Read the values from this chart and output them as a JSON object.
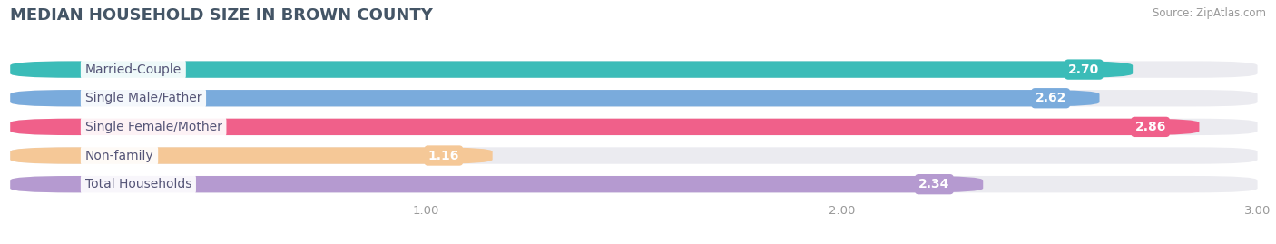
{
  "title": "MEDIAN HOUSEHOLD SIZE IN BROWN COUNTY",
  "source": "Source: ZipAtlas.com",
  "categories": [
    "Married-Couple",
    "Single Male/Father",
    "Single Female/Mother",
    "Non-family",
    "Total Households"
  ],
  "values": [
    2.7,
    2.62,
    2.86,
    1.16,
    2.34
  ],
  "bar_colors": [
    "#3bbcb8",
    "#7aabdc",
    "#f0608a",
    "#f5c897",
    "#b59ad0"
  ],
  "background_color": "#ffffff",
  "bar_bg_color": "#ebebf0",
  "label_text_color": "#555577",
  "xlim_max": 3.0,
  "xticks": [
    1.0,
    2.0,
    3.0
  ],
  "title_fontsize": 13,
  "label_fontsize": 10,
  "value_fontsize": 10,
  "value_outside_threshold": 0.5
}
